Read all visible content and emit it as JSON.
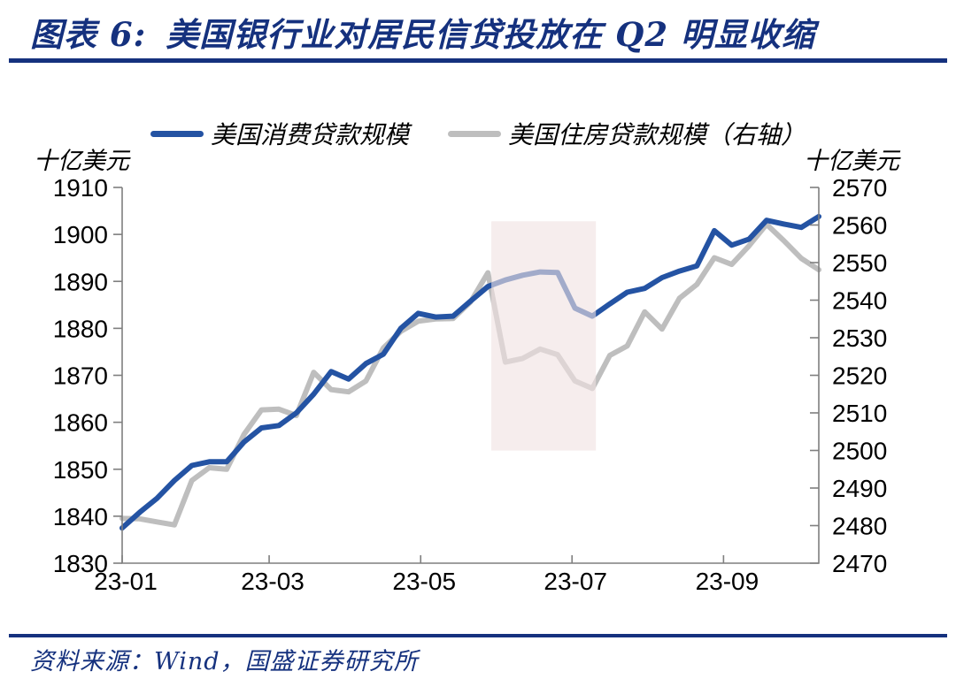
{
  "title": {
    "prefix": "图表 6:",
    "text": "美国银行业对居民信贷投放在 Q2 明显收缩"
  },
  "legend": [
    {
      "label": "美国消费贷款规模"
    },
    {
      "label": "美国住房贷款规模（右轴）"
    }
  ],
  "footer": {
    "source": "资料来源：Wind，国盛证券研究所"
  },
  "colors": {
    "accent": "#15317E",
    "consumer_line": "#2453A3",
    "housing_line": "#BEBEBE",
    "highlight_band": "#F1E2E2",
    "axis_line": "#7F7F7F"
  },
  "chart_data": {
    "type": "line",
    "title": "美国银行业对居民信贷投放在 Q2 明显收缩",
    "x_unit": "week",
    "n_points": 41,
    "x_tick_labels": [
      "23-01",
      "23-03",
      "23-05",
      "23-07",
      "23-09"
    ],
    "x_tick_positions_weeks": [
      0,
      8.44,
      17.14,
      25.83,
      34.53
    ],
    "grid": false,
    "legend_position": "top",
    "left_axis": {
      "label": "十亿美元",
      "min": 1830,
      "max": 1910,
      "ticks": [
        1910,
        1900,
        1890,
        1880,
        1870,
        1860,
        1850,
        1840,
        1830
      ]
    },
    "right_axis": {
      "label": "十亿美元",
      "min": 2470,
      "max": 2570,
      "ticks": [
        2570,
        2560,
        2550,
        2540,
        2530,
        2520,
        2510,
        2500,
        2490,
        2480,
        2470
      ]
    },
    "series": [
      {
        "name": "美国消费贷款规模",
        "axis": "left",
        "color": "#2453A3",
        "values": [
          1837.5,
          1840.8,
          1843.8,
          1847.6,
          1850.8,
          1851.6,
          1851.6,
          1855.8,
          1858.8,
          1859.3,
          1862.0,
          1866.0,
          1870.8,
          1869.2,
          1872.5,
          1874.5,
          1880.0,
          1883.2,
          1882.4,
          1882.6,
          1885.8,
          1888.9,
          1890.3,
          1891.3,
          1892.0,
          1891.9,
          1884.3,
          1882.6,
          1885.2,
          1887.7,
          1888.5,
          1890.8,
          1892.2,
          1893.3,
          1900.8,
          1897.7,
          1899.0,
          1903.0,
          1902.2,
          1901.5,
          1903.8
        ]
      },
      {
        "name": "美国住房贷款规模（右轴）",
        "axis": "right",
        "color": "#BEBEBE",
        "values": [
          2481.9,
          2481.8,
          2481.0,
          2480.2,
          2492.0,
          2495.4,
          2495.0,
          2504.3,
          2510.8,
          2511.0,
          2509.3,
          2520.8,
          2516.2,
          2515.6,
          2518.5,
          2527.3,
          2531.7,
          2534.4,
          2535.0,
          2535.1,
          2539.5,
          2547.3,
          2523.5,
          2524.5,
          2527.0,
          2525.5,
          2518.5,
          2516.5,
          2525.3,
          2527.8,
          2536.9,
          2532.3,
          2540.5,
          2544.2,
          2551.3,
          2549.5,
          2554.5,
          2560.2,
          2555.8,
          2551.1,
          2548.1
        ]
      }
    ],
    "highlight_band": {
      "x_start_week": 21.2,
      "x_end_week": 27.2,
      "axis": "right",
      "y_top": 2561,
      "y_bottom": 2500,
      "color": "#F1E2E2",
      "opacity": 0.62
    }
  }
}
